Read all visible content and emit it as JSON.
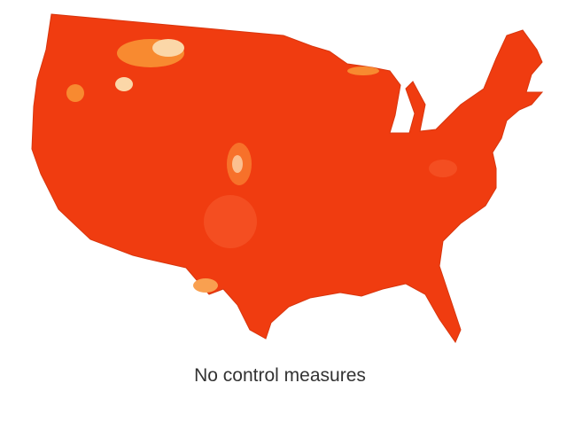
{
  "caption": "No control measures"
}
